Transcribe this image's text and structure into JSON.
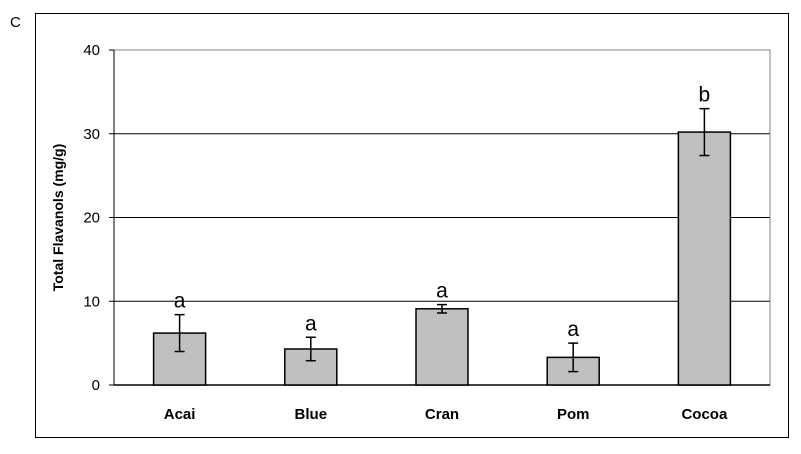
{
  "panel_label": "C",
  "chart_data": {
    "type": "bar",
    "title": "",
    "xlabel": "",
    "ylabel": "Total Flavanols (mg/g)",
    "ylim": [
      0,
      40
    ],
    "yticks": [
      0,
      10,
      20,
      30,
      40
    ],
    "grid": true,
    "categories": [
      "Acai",
      "Blue",
      "Cran",
      "Pom",
      "Cocoa"
    ],
    "values": [
      6.2,
      4.3,
      9.1,
      3.3,
      30.2
    ],
    "errors": [
      2.2,
      1.4,
      0.5,
      1.7,
      2.8
    ],
    "significance": [
      "a",
      "a",
      "a",
      "a",
      "b"
    ],
    "colors": {
      "bar_fill": "#c0c0c0",
      "bar_stroke": "#000000",
      "grid": "#000000"
    }
  }
}
